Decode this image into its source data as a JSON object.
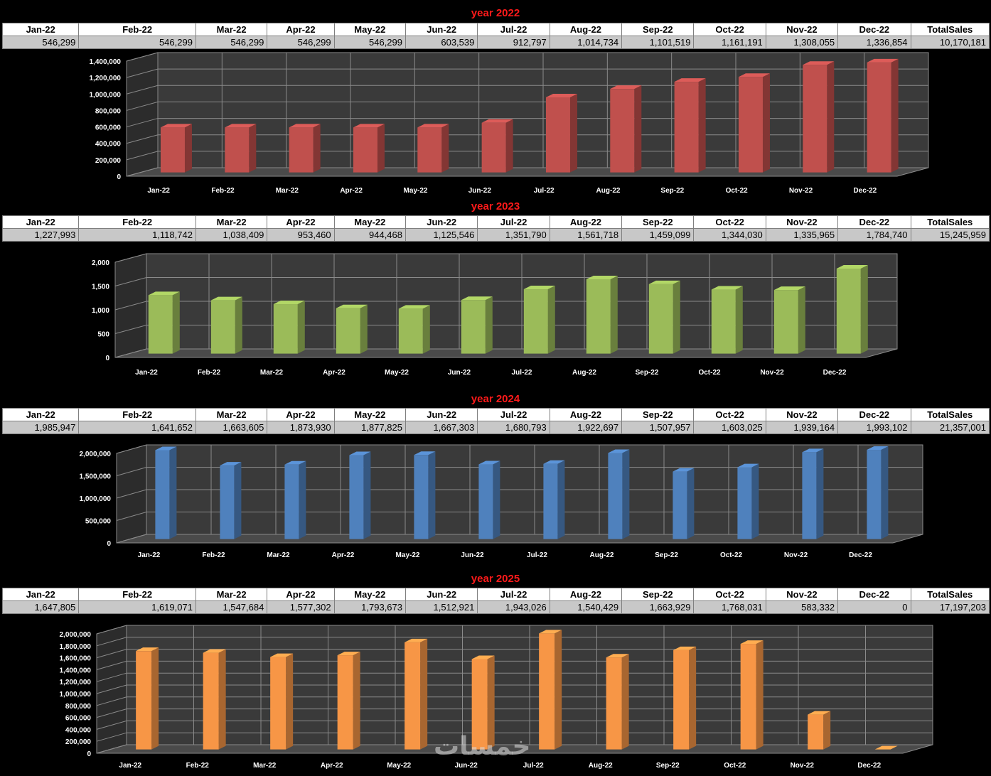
{
  "months": [
    "Jan-22",
    "Feb-22",
    "Mar-22",
    "Apr-22",
    "May-22",
    "Jun-22",
    "Jul-22",
    "Aug-22",
    "Sep-22",
    "Oct-22",
    "Nov-22",
    "Dec-22"
  ],
  "total_label": "TotalSales",
  "watermark": "خمسات",
  "sections": [
    {
      "title": "year 2022",
      "values_text": [
        "546,299",
        "546,299",
        "546,299",
        "546,299",
        "546,299",
        "603,539",
        "912,797",
        "1,014,734",
        "1,101,519",
        "1,161,191",
        "1,308,055",
        "1,336,854"
      ],
      "total_text": "10,170,181"
    },
    {
      "title": "year 2023",
      "values_text": [
        "1,227,993",
        "1,118,742",
        "1,038,409",
        "953,460",
        "944,468",
        "1,125,546",
        "1,351,790",
        "1,561,718",
        "1,459,099",
        "1,344,030",
        "1,335,965",
        "1,784,740"
      ],
      "total_text": "15,245,959"
    },
    {
      "title": "year 2024",
      "values_text": [
        "1,985,947",
        "1,641,652",
        "1,663,605",
        "1,873,930",
        "1,877,825",
        "1,667,303",
        "1,680,793",
        "1,922,697",
        "1,507,957",
        "1,603,025",
        "1,939,164",
        "1,993,102"
      ],
      "total_text": "21,357,001"
    },
    {
      "title": "year 2025",
      "values_text": [
        "1,647,805",
        "1,619,071",
        "1,547,684",
        "1,577,302",
        "1,793,673",
        "1,512,921",
        "1,943,026",
        "1,540,429",
        "1,663,929",
        "1,768,031",
        "583,332",
        "0"
      ],
      "total_text": "17,197,203"
    }
  ],
  "chart_data": [
    {
      "type": "bar",
      "categories": [
        "Jan-22",
        "Feb-22",
        "Mar-22",
        "Apr-22",
        "May-22",
        "Jun-22",
        "Jul-22",
        "Aug-22",
        "Sep-22",
        "Oct-22",
        "Nov-22",
        "Dec-22"
      ],
      "values": [
        546299,
        546299,
        546299,
        546299,
        546299,
        603539,
        912797,
        1014734,
        1101519,
        1161191,
        1308055,
        1336854
      ],
      "ylim": [
        0,
        1400000
      ],
      "yticks": [
        "0",
        "200,000",
        "400,000",
        "600,000",
        "800,000",
        "1,000,000",
        "1,200,000",
        "1,400,000"
      ],
      "color": "#c0504d",
      "grid": true
    },
    {
      "type": "bar",
      "categories": [
        "Jan-22",
        "Feb-22",
        "Mar-22",
        "Apr-22",
        "May-22",
        "Jun-22",
        "Jul-22",
        "Aug-22",
        "Sep-22",
        "Oct-22",
        "Nov-22",
        "Dec-22"
      ],
      "values": [
        1227993,
        1118742,
        1038409,
        953460,
        944468,
        1125546,
        1351790,
        1561718,
        1459099,
        1344030,
        1335965,
        1784740
      ],
      "ylim": [
        0,
        2000000
      ],
      "yticks": [
        "0",
        "500",
        "1,000",
        "1,500",
        "2,000"
      ],
      "color": "#9bbb59",
      "grid": true
    },
    {
      "type": "bar",
      "categories": [
        "Jan-22",
        "Feb-22",
        "Mar-22",
        "Apr-22",
        "May-22",
        "Jun-22",
        "Jul-22",
        "Aug-22",
        "Sep-22",
        "Oct-22",
        "Nov-22",
        "Dec-22"
      ],
      "values": [
        1985947,
        1641652,
        1663605,
        1873930,
        1877825,
        1667303,
        1680793,
        1922697,
        1507957,
        1603025,
        1939164,
        1993102
      ],
      "ylim": [
        0,
        2000000
      ],
      "yticks": [
        "0",
        "500,000",
        "1,000,000",
        "1,500,000",
        "2,000,000"
      ],
      "color": "#4f81bd",
      "grid": true
    },
    {
      "type": "bar",
      "categories": [
        "Jan-22",
        "Feb-22",
        "Mar-22",
        "Apr-22",
        "May-22",
        "Jun-22",
        "Jul-22",
        "Aug-22",
        "Sep-22",
        "Oct-22",
        "Nov-22",
        "Dec-22"
      ],
      "values": [
        1647805,
        1619071,
        1547684,
        1577302,
        1793673,
        1512921,
        1943026,
        1540429,
        1663929,
        1768031,
        583332,
        0
      ],
      "ylim": [
        0,
        2000000
      ],
      "yticks": [
        "0",
        "200,000",
        "400,000",
        "600,000",
        "800,000",
        "1,000,000",
        "1,200,000",
        "1,400,000",
        "1,600,000",
        "1,800,000",
        "2,000,000"
      ],
      "color": "#f79646",
      "grid": true
    }
  ]
}
